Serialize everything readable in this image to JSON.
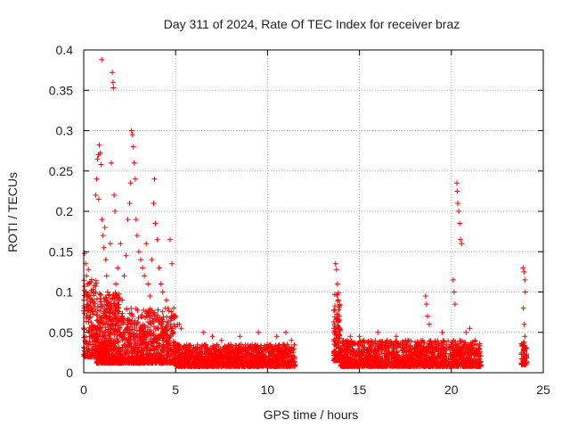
{
  "chart_data": {
    "type": "scatter",
    "title": "Day 311 of 2024, Rate Of TEC Index for receiver braz",
    "xlabel": "GPS time / hours",
    "ylabel": "ROTI / TECUs",
    "xlim": [
      0,
      25
    ],
    "ylim": [
      0,
      0.4
    ],
    "xticks": [
      0,
      5,
      10,
      15,
      20,
      25
    ],
    "yticks": [
      0,
      0.05,
      0.1,
      0.15,
      0.2,
      0.25,
      0.3,
      0.35,
      0.4
    ],
    "xtick_labels": [
      "0",
      "5",
      "10",
      "15",
      "20",
      "25"
    ],
    "ytick_labels": [
      "0",
      "0.05",
      "0.1",
      "0.15",
      "0.2",
      "0.25",
      "0.3",
      "0.35",
      "0.4"
    ],
    "grid": true,
    "marker": "+",
    "color": "#ff0000",
    "series": [
      {
        "name": "",
        "points": [
          [
            0.05,
            0.148
          ],
          [
            0.1,
            0.135
          ],
          [
            0.15,
            0.12
          ],
          [
            0.2,
            0.11
          ],
          [
            0.25,
            0.128
          ],
          [
            0.3,
            0.095
          ],
          [
            0.35,
            0.075
          ],
          [
            0.4,
            0.062
          ],
          [
            0.45,
            0.05
          ],
          [
            0.5,
            0.045
          ],
          [
            0.55,
            0.03
          ],
          [
            0.6,
            0.025
          ],
          [
            0.65,
            0.22
          ],
          [
            0.7,
            0.24
          ],
          [
            0.75,
            0.265
          ],
          [
            0.8,
            0.27
          ],
          [
            0.82,
            0.215
          ],
          [
            0.85,
            0.282
          ],
          [
            0.9,
            0.272
          ],
          [
            0.95,
            0.258
          ],
          [
            0.98,
            0.388
          ],
          [
            1.0,
            0.19
          ],
          [
            1.05,
            0.17
          ],
          [
            1.1,
            0.155
          ],
          [
            1.15,
            0.18
          ],
          [
            1.2,
            0.14
          ],
          [
            1.25,
            0.12
          ],
          [
            1.3,
            0.1
          ],
          [
            1.35,
            0.085
          ],
          [
            1.4,
            0.07
          ],
          [
            1.45,
            0.16
          ],
          [
            1.5,
            0.26
          ],
          [
            1.55,
            0.372
          ],
          [
            1.6,
            0.36
          ],
          [
            1.62,
            0.353
          ],
          [
            1.65,
            0.22
          ],
          [
            1.7,
            0.2
          ],
          [
            1.75,
            0.11
          ],
          [
            1.8,
            0.095
          ],
          [
            1.85,
            0.13
          ],
          [
            1.9,
            0.08
          ],
          [
            2.0,
            0.16
          ],
          [
            2.1,
            0.09
          ],
          [
            2.2,
            0.12
          ],
          [
            2.3,
            0.145
          ],
          [
            2.4,
            0.19
          ],
          [
            2.5,
            0.21
          ],
          [
            2.55,
            0.235
          ],
          [
            2.6,
            0.3
          ],
          [
            2.65,
            0.295
          ],
          [
            2.7,
            0.28
          ],
          [
            2.75,
            0.26
          ],
          [
            2.8,
            0.24
          ],
          [
            2.85,
            0.19
          ],
          [
            2.9,
            0.17
          ],
          [
            3.0,
            0.15
          ],
          [
            3.1,
            0.14
          ],
          [
            3.2,
            0.13
          ],
          [
            3.3,
            0.12
          ],
          [
            3.4,
            0.16
          ],
          [
            3.5,
            0.11
          ],
          [
            3.6,
            0.095
          ],
          [
            3.7,
            0.14
          ],
          [
            3.8,
            0.21
          ],
          [
            3.85,
            0.24
          ],
          [
            3.9,
            0.185
          ],
          [
            4.0,
            0.165
          ],
          [
            4.1,
            0.13
          ],
          [
            4.2,
            0.11
          ],
          [
            4.3,
            0.1
          ],
          [
            4.5,
            0.09
          ],
          [
            4.7,
            0.165
          ],
          [
            4.8,
            0.135
          ],
          [
            4.9,
            0.08
          ],
          [
            5.0,
            0.07
          ],
          [
            5.1,
            0.06
          ],
          [
            5.2,
            0.06
          ],
          [
            5.3,
            0.055
          ],
          [
            6.5,
            0.05
          ],
          [
            7.0,
            0.045
          ],
          [
            7.5,
            0.04
          ],
          [
            8.0,
            0.035
          ],
          [
            8.5,
            0.045
          ],
          [
            9.5,
            0.05
          ],
          [
            10.0,
            0.03
          ],
          [
            10.5,
            0.045
          ],
          [
            11.0,
            0.05
          ],
          [
            11.3,
            0.04
          ],
          [
            13.7,
            0.135
          ],
          [
            13.75,
            0.128
          ],
          [
            13.8,
            0.11
          ],
          [
            13.85,
            0.09
          ],
          [
            13.9,
            0.07
          ],
          [
            14.5,
            0.045
          ],
          [
            15.0,
            0.045
          ],
          [
            16.0,
            0.05
          ],
          [
            16.5,
            0.04
          ],
          [
            17.0,
            0.045
          ],
          [
            17.5,
            0.04
          ],
          [
            18.6,
            0.095
          ],
          [
            18.65,
            0.085
          ],
          [
            18.7,
            0.07
          ],
          [
            18.8,
            0.06
          ],
          [
            19.5,
            0.05
          ],
          [
            20.1,
            0.115
          ],
          [
            20.15,
            0.1
          ],
          [
            20.2,
            0.085
          ],
          [
            20.3,
            0.235
          ],
          [
            20.32,
            0.225
          ],
          [
            20.35,
            0.21
          ],
          [
            20.4,
            0.2
          ],
          [
            20.45,
            0.185
          ],
          [
            20.5,
            0.165
          ],
          [
            20.55,
            0.16
          ],
          [
            20.8,
            0.05
          ],
          [
            21.0,
            0.055
          ],
          [
            21.3,
            0.04
          ],
          [
            23.9,
            0.13
          ],
          [
            23.95,
            0.125
          ],
          [
            24.0,
            0.115
          ],
          [
            24.02,
            0.1
          ],
          [
            23.92,
            0.08
          ],
          [
            23.97,
            0.06
          ],
          [
            24.0,
            0.045
          ],
          [
            24.05,
            0.03
          ],
          [
            24.08,
            0.02
          ]
        ]
      }
    ],
    "background_bands": [
      {
        "x_start": 0.0,
        "x_end": 0.7,
        "y_min": 0.02,
        "y_max": 0.12,
        "n": 160
      },
      {
        "x_start": 0.7,
        "x_end": 2.0,
        "y_min": 0.012,
        "y_max": 0.1,
        "n": 500
      },
      {
        "x_start": 2.0,
        "x_end": 5.0,
        "y_min": 0.012,
        "y_max": 0.08,
        "n": 700
      },
      {
        "x_start": 5.0,
        "x_end": 11.5,
        "y_min": 0.008,
        "y_max": 0.035,
        "n": 1400
      },
      {
        "x_start": 13.6,
        "x_end": 13.95,
        "y_min": 0.015,
        "y_max": 0.1,
        "n": 120
      },
      {
        "x_start": 13.95,
        "x_end": 21.6,
        "y_min": 0.008,
        "y_max": 0.04,
        "n": 1600
      },
      {
        "x_start": 23.8,
        "x_end": 24.1,
        "y_min": 0.01,
        "y_max": 0.04,
        "n": 60
      }
    ]
  }
}
